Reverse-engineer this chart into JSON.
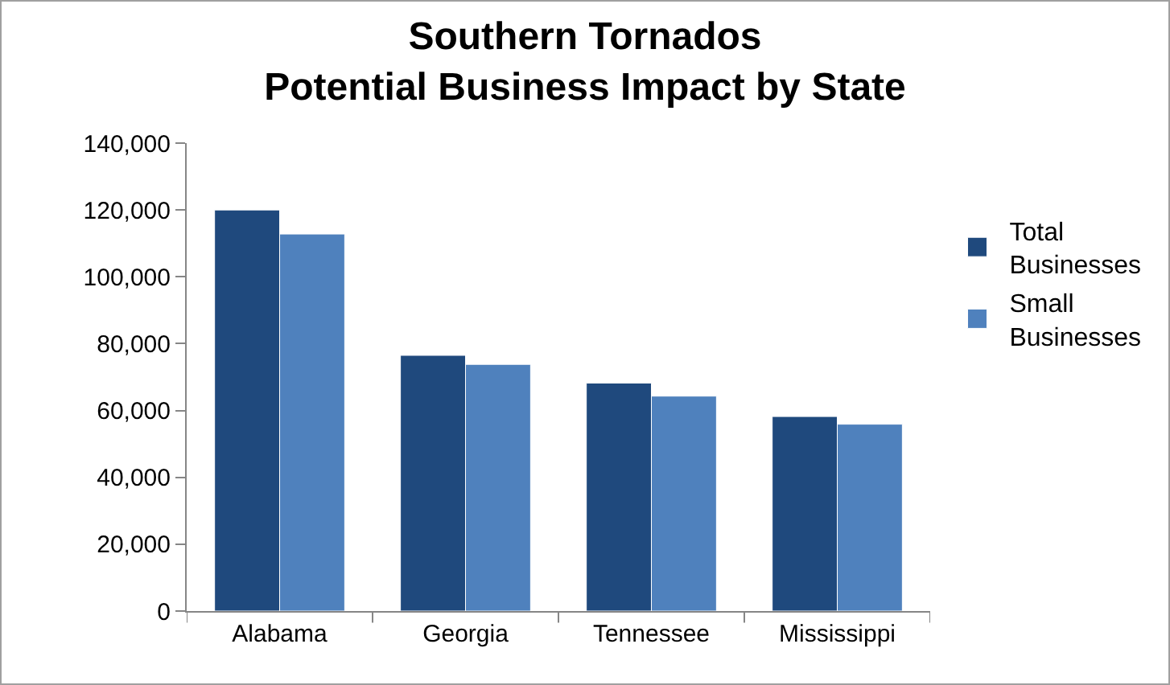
{
  "chart_data": {
    "type": "bar",
    "title": "Southern Tornados\nPotential Business Impact by State",
    "categories": [
      "Alabama",
      "Georgia",
      "Tennessee",
      "Mississippi"
    ],
    "series": [
      {
        "name": "Total Businesses",
        "color": "#1f497d",
        "values": [
          120000,
          76500,
          68200,
          58200
        ]
      },
      {
        "name": "Small Businesses",
        "color": "#4f81bd",
        "values": [
          112800,
          73800,
          64300,
          55900
        ]
      }
    ],
    "ylim": [
      0,
      140000
    ],
    "yticks": [
      {
        "value": 0,
        "label": "0"
      },
      {
        "value": 20000,
        "label": "20,000"
      },
      {
        "value": 40000,
        "label": "40,000"
      },
      {
        "value": 60000,
        "label": "60,000"
      },
      {
        "value": 80000,
        "label": "80,000"
      },
      {
        "value": 100000,
        "label": "100,000"
      },
      {
        "value": 120000,
        "label": "120,000"
      },
      {
        "value": 140000,
        "label": "140,000"
      }
    ],
    "grid": false,
    "legend": "right"
  }
}
